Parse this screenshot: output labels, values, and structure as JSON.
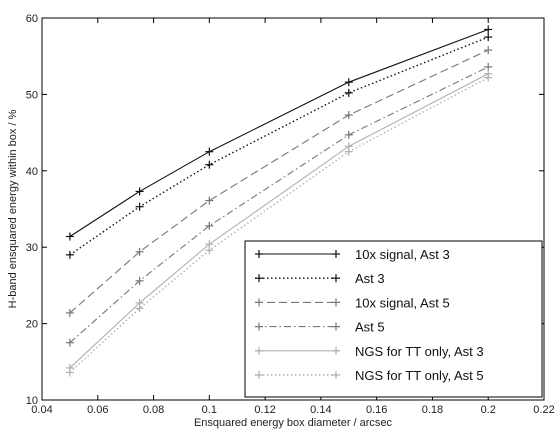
{
  "chart_data": {
    "type": "line",
    "title": "",
    "xlabel": "Ensquared energy box diameter / arcsec",
    "ylabel": "H-band ensquared energy within box / %",
    "xlim": [
      0.04,
      0.22
    ],
    "ylim": [
      10,
      60
    ],
    "xticks": [
      "0.04",
      "0.06",
      "0.08",
      "0.1",
      "0.12",
      "0.14",
      "0.16",
      "0.18",
      "0.2",
      "0.22"
    ],
    "yticks": [
      "10",
      "20",
      "30",
      "40",
      "50",
      "60"
    ],
    "grid": false,
    "legend_position": "bottom-right",
    "x": [
      0.05,
      0.075,
      0.1,
      0.15,
      0.2
    ],
    "series": [
      {
        "name": "10x signal, Ast 3",
        "values": [
          31.4,
          37.3,
          42.5,
          51.6,
          58.5
        ],
        "color": "#111111",
        "dash": "solid",
        "marker": "plus"
      },
      {
        "name": "Ast 3",
        "values": [
          29.0,
          35.3,
          40.8,
          50.2,
          57.5
        ],
        "color": "#111111",
        "dash": "dotted",
        "marker": "plus"
      },
      {
        "name": "10x signal, Ast 5",
        "values": [
          21.4,
          29.4,
          36.1,
          47.3,
          55.8
        ],
        "color": "#777777",
        "dash": "dashed",
        "marker": "plus"
      },
      {
        "name": "Ast 5",
        "values": [
          17.5,
          25.6,
          32.8,
          44.7,
          53.6
        ],
        "color": "#777777",
        "dash": "dashdot",
        "marker": "plus"
      },
      {
        "name": "NGS for TT only, Ast 3",
        "values": [
          14.2,
          22.7,
          30.4,
          43.2,
          52.7
        ],
        "color": "#b0b0b0",
        "dash": "solid",
        "marker": "plus"
      },
      {
        "name": "NGS for TT only, Ast 5",
        "values": [
          13.6,
          22.0,
          29.6,
          42.5,
          52.2
        ],
        "color": "#b0b0b0",
        "dash": "dotted",
        "marker": "plus"
      }
    ]
  }
}
